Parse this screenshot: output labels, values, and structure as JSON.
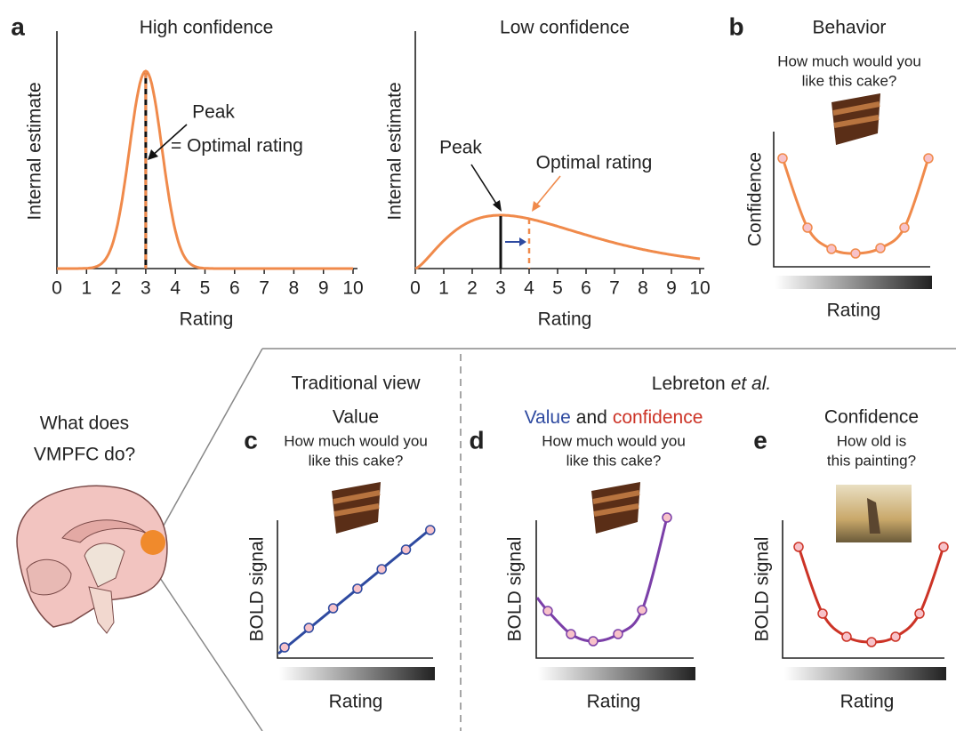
{
  "panel_a": {
    "label": "a",
    "high": {
      "title": "High confidence",
      "ylabel": "Internal estimate",
      "xlabel": "Rating",
      "xticks": [
        0,
        1,
        2,
        3,
        4,
        5,
        6,
        7,
        8,
        9,
        10
      ],
      "peak": "Peak",
      "optimal": "= Optimal rating"
    },
    "low": {
      "title": "Low confidence",
      "ylabel": "Internal estimate",
      "xlabel": "Rating",
      "xticks": [
        0,
        1,
        2,
        3,
        4,
        5,
        6,
        7,
        8,
        9,
        10
      ],
      "peak": "Peak",
      "optimal": "Optimal rating"
    }
  },
  "panel_b": {
    "label": "b",
    "title": "Behavior",
    "question": [
      "How much would you",
      "like this cake?"
    ],
    "ylabel": "Confidence",
    "xlabel": "Rating"
  },
  "bottom": {
    "question": [
      "What does",
      "VMPFC do?"
    ],
    "traditional": "Traditional view",
    "lebreton": [
      "Lebreton",
      "et al."
    ]
  },
  "panel_c": {
    "label": "c",
    "title": "Value",
    "question": [
      "How much would you",
      "like this cake?"
    ],
    "ylabel": "BOLD signal",
    "xlabel": "Rating"
  },
  "panel_d": {
    "label": "d",
    "title": [
      "Value",
      "and",
      "confidence"
    ],
    "question": [
      "How much would you",
      "like this cake?"
    ],
    "ylabel": "BOLD signal",
    "xlabel": "Rating"
  },
  "panel_e": {
    "label": "e",
    "title": "Confidence",
    "question": [
      "How old is",
      "this painting?"
    ],
    "ylabel": "BOLD signal",
    "xlabel": "Rating"
  }
}
